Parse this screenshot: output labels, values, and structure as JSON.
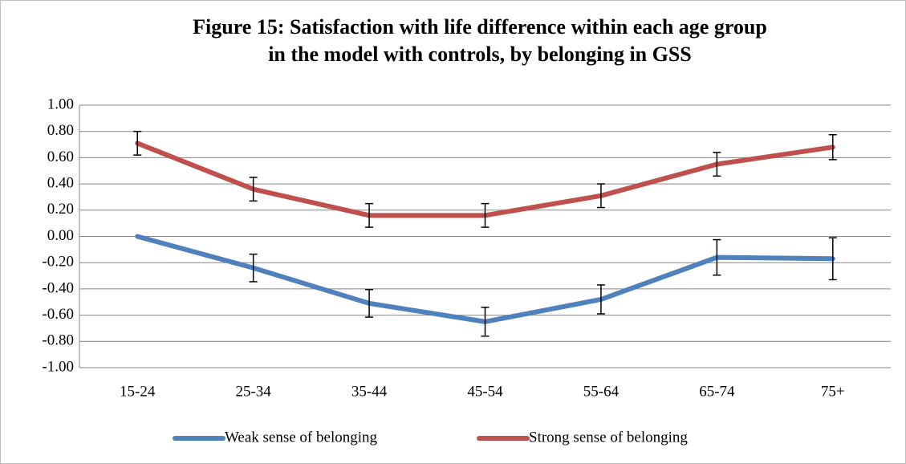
{
  "chart_data": {
    "type": "line",
    "title": [
      "Figure 15: Satisfaction with life difference within each age group",
      "in the model with controls, by belonging in GSS"
    ],
    "categories": [
      "15-24",
      "25-34",
      "35-44",
      "45-54",
      "55-64",
      "65-74",
      "75+"
    ],
    "series": [
      {
        "name": "Weak sense of belonging",
        "color": "#4f81bd",
        "values": [
          0.0,
          -0.24,
          -0.51,
          -0.65,
          -0.48,
          -0.16,
          -0.17
        ],
        "errors": [
          null,
          0.105,
          0.105,
          0.11,
          0.11,
          0.135,
          0.16
        ]
      },
      {
        "name": "Strong sense of belonging",
        "color": "#c0504d",
        "values": [
          0.71,
          0.36,
          0.16,
          0.16,
          0.31,
          0.55,
          0.68
        ],
        "errors": [
          0.09,
          0.09,
          0.09,
          0.09,
          0.09,
          0.09,
          0.095
        ]
      }
    ],
    "ylim": [
      -1,
      1
    ],
    "yticks": [
      {
        "value": -1,
        "label": "-1.00"
      },
      {
        "value": -0.8,
        "label": "-0.80"
      },
      {
        "value": -0.6,
        "label": "-0.60"
      },
      {
        "value": -0.4,
        "label": "-0.40"
      },
      {
        "value": -0.2,
        "label": "-0.20"
      },
      {
        "value": 0,
        "label": "0.00"
      },
      {
        "value": 0.2,
        "label": "0.20"
      },
      {
        "value": 0.4,
        "label": "0.40"
      },
      {
        "value": 0.6,
        "label": "0.60"
      },
      {
        "value": 0.8,
        "label": "0.80"
      },
      {
        "value": 1,
        "label": "1.00"
      }
    ],
    "grid": true,
    "legend": "bottom"
  }
}
